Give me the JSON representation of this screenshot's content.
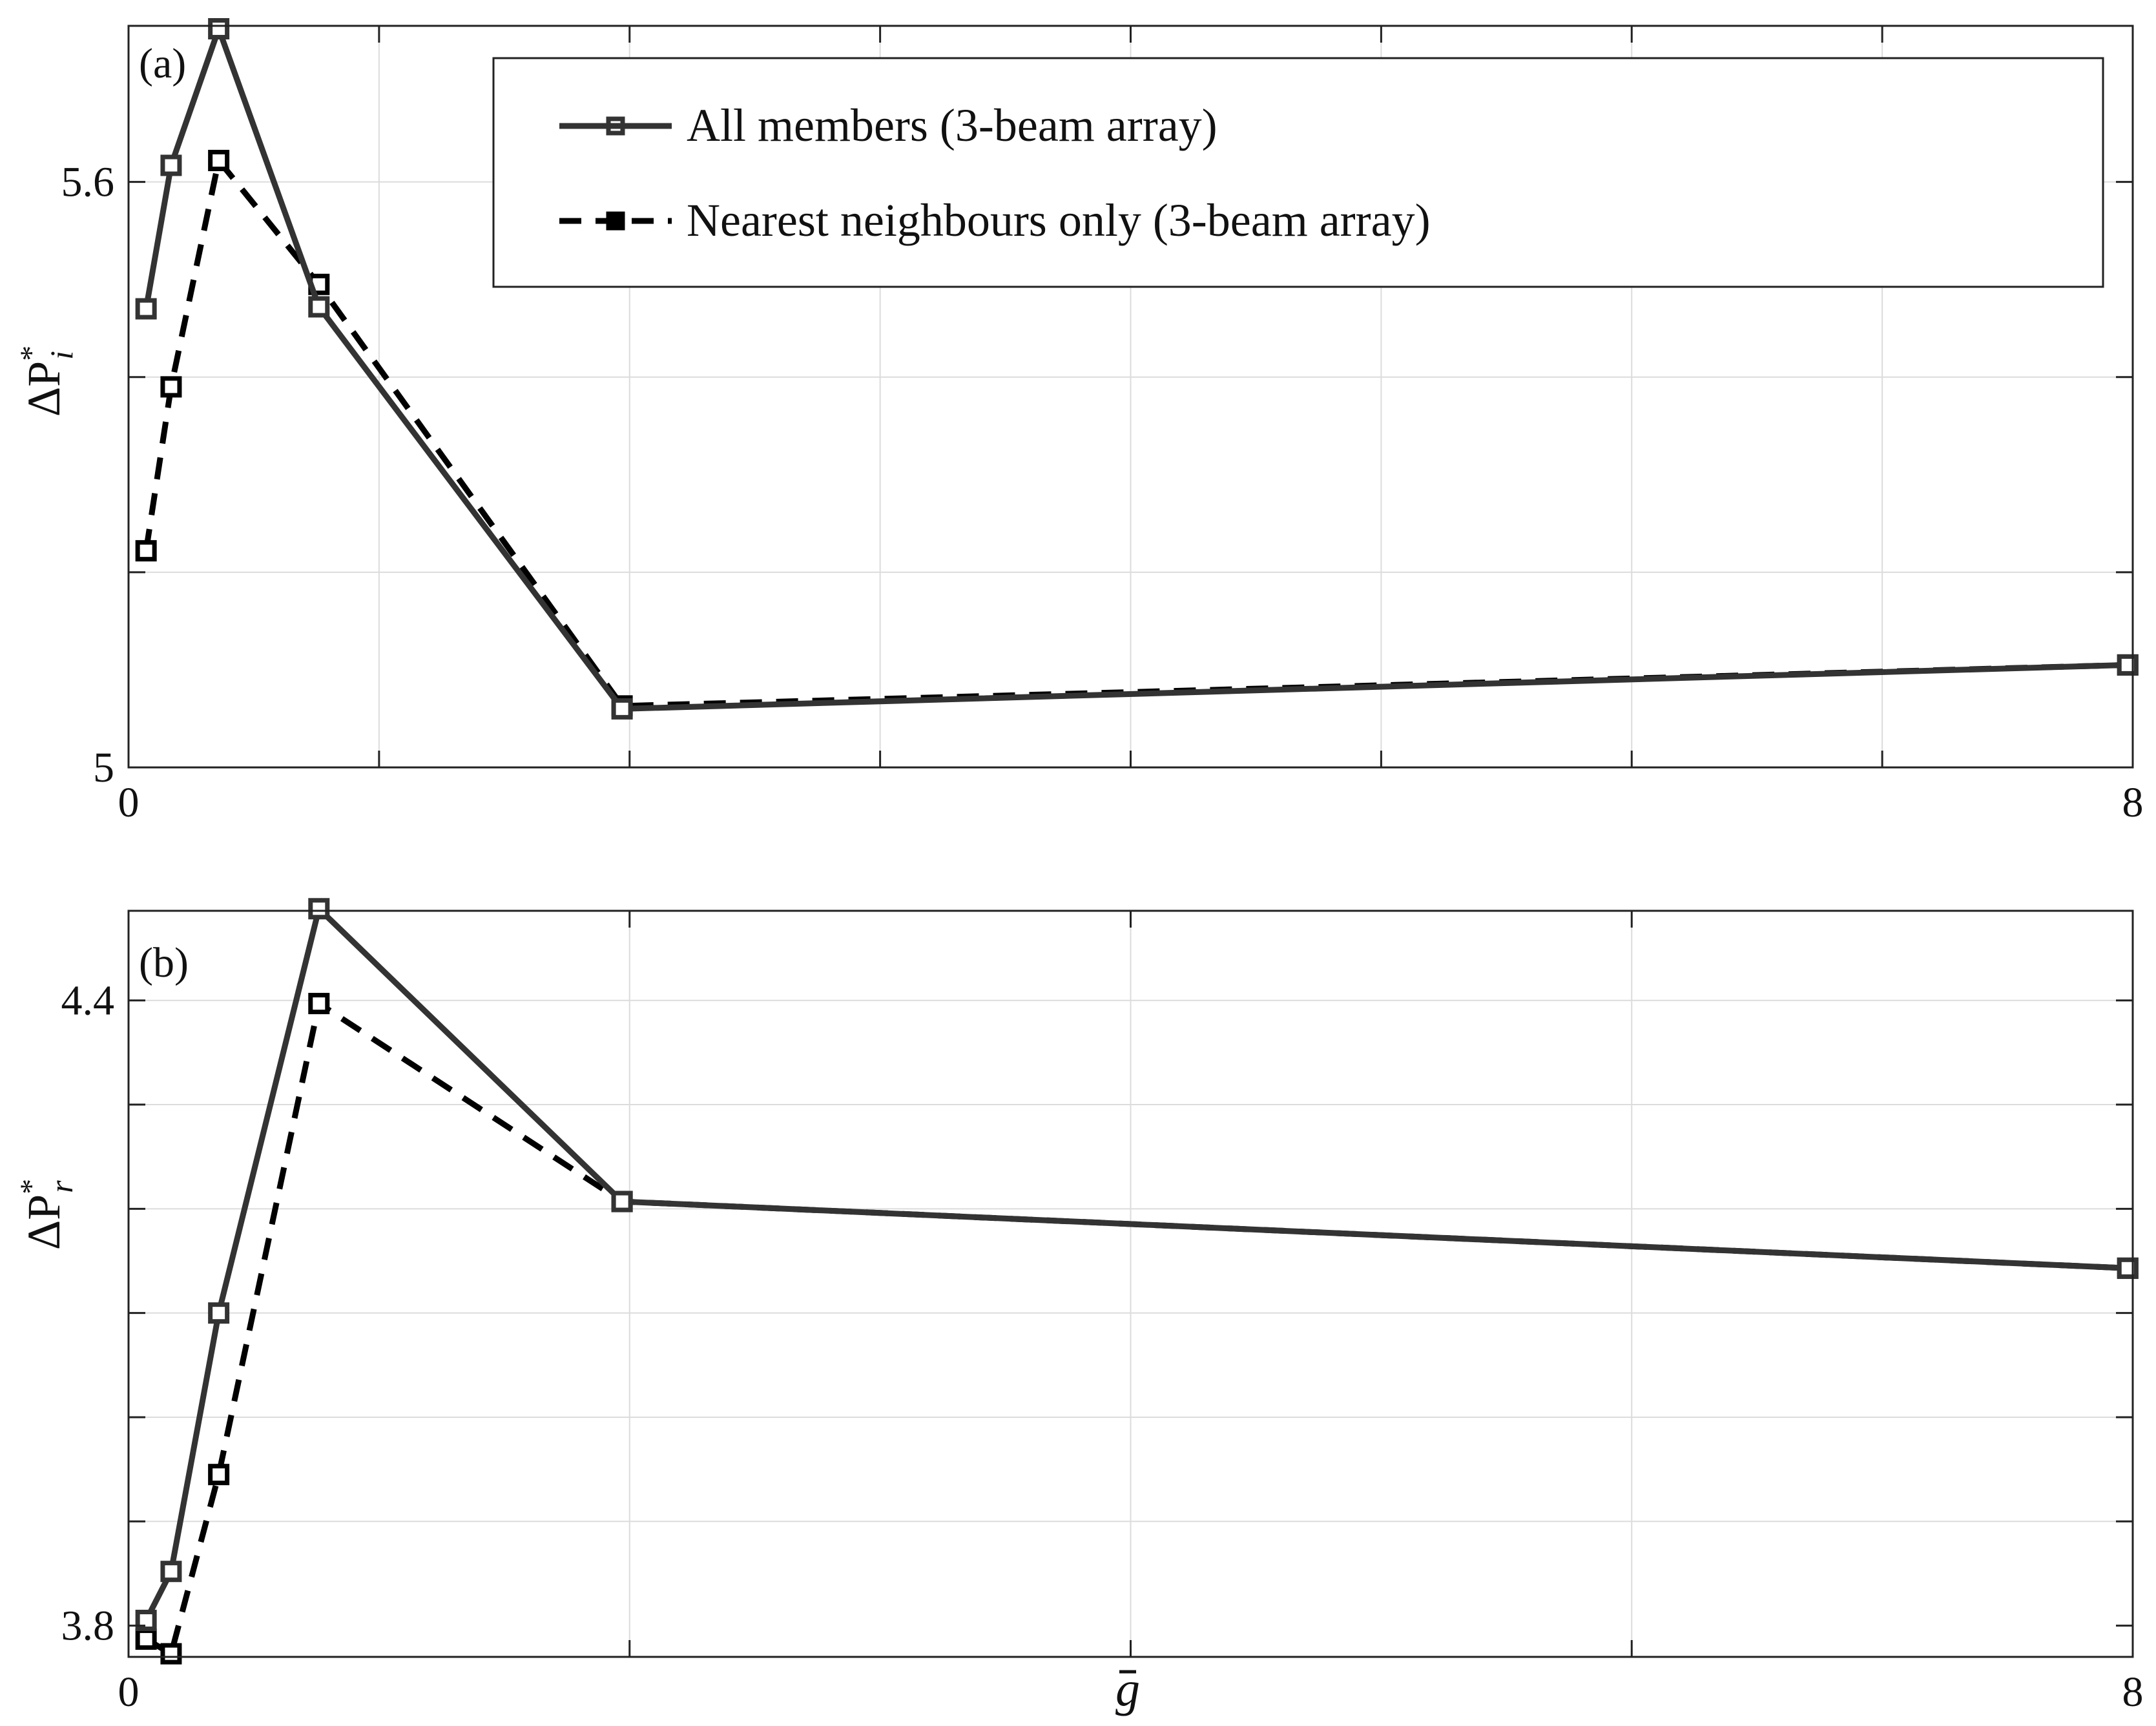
{
  "chart_data": [
    {
      "type": "line",
      "panel_label": "(a)",
      "ylabel": "ΔP*i",
      "ylabel_base": "ΔP",
      "ylabel_sup": "*",
      "ylabel_sub": "i",
      "xlim": [
        0,
        8
      ],
      "ylim": [
        5.0,
        5.76
      ],
      "x_ticks": [
        "0",
        "8"
      ],
      "x_tick_values": [
        0,
        8
      ],
      "y_ticks": [
        "5",
        "5.6"
      ],
      "y_tick_values": [
        5.0,
        5.6
      ],
      "x_grid": [
        1,
        2,
        3,
        4,
        5,
        6,
        7
      ],
      "y_grid": [
        5.2,
        5.4,
        5.6
      ],
      "grid": true,
      "legend": {
        "placement": "top-right",
        "entries": [
          "All members (3-beam array)",
          "Nearest neighbours only (3-beam array)"
        ]
      },
      "series": [
        {
          "name": "All members (3-beam array)",
          "style": "solid",
          "color": "#333333",
          "x": [
            0.07,
            0.17,
            0.36,
            0.76,
            1.97,
            7.98
          ],
          "y": [
            5.47,
            5.617,
            5.757,
            5.472,
            5.06,
            5.105
          ]
        },
        {
          "name": "Nearest neighbours only (3-beam array)",
          "style": "dashed",
          "color": "#000000",
          "x": [
            0.07,
            0.17,
            0.36,
            0.76,
            1.97,
            7.98
          ],
          "y": [
            5.222,
            5.39,
            5.622,
            5.495,
            5.063,
            5.105
          ]
        }
      ]
    },
    {
      "type": "line",
      "panel_label": "(b)",
      "ylabel": "ΔP*r",
      "ylabel_base": "ΔP",
      "ylabel_sup": "*",
      "ylabel_sub": "r",
      "xlabel": "ḡ",
      "xlabel_base": "g",
      "xlim": [
        0,
        8
      ],
      "ylim": [
        3.77,
        4.486
      ],
      "x_ticks": [
        "0",
        "8"
      ],
      "x_tick_values": [
        0,
        8
      ],
      "y_ticks": [
        "3.8",
        "4.4"
      ],
      "y_tick_values": [
        3.8,
        4.4
      ],
      "x_grid": [
        2,
        4,
        6
      ],
      "y_grid": [
        3.9,
        4.0,
        4.1,
        4.2,
        4.3,
        4.4
      ],
      "grid": true,
      "series": [
        {
          "name": "All members (3-beam array)",
          "style": "solid",
          "color": "#333333",
          "x": [
            0.07,
            0.17,
            0.36,
            0.76,
            1.97,
            7.98
          ],
          "y": [
            3.805,
            3.852,
            4.1,
            4.488,
            4.207,
            4.143
          ]
        },
        {
          "name": "Nearest neighbours only (3-beam array)",
          "style": "dashed",
          "color": "#000000",
          "x": [
            0.07,
            0.17,
            0.36,
            0.76,
            1.97,
            7.98
          ],
          "y": [
            3.787,
            3.773,
            3.945,
            4.397,
            4.207,
            4.143
          ]
        }
      ]
    }
  ]
}
